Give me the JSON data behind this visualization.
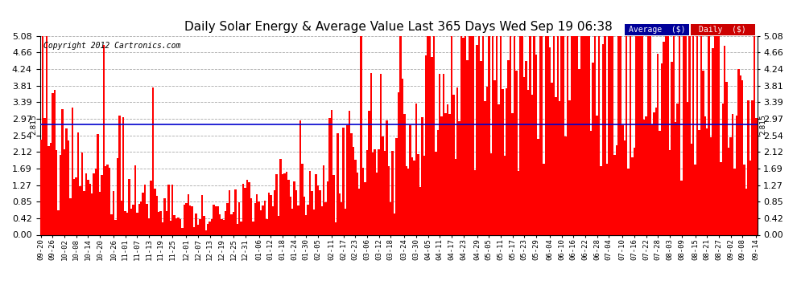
{
  "title": "Daily Solar Energy & Average Value Last 365 Days Wed Sep 19 06:38",
  "copyright": "Copyright 2012 Cartronics.com",
  "bar_color": "#ff0000",
  "avg_line_color": "#0000cd",
  "avg_value": 2.815,
  "avg_label": "2.815",
  "ylim_min": 0.0,
  "ylim_max": 5.08,
  "yticks": [
    0.0,
    0.42,
    0.85,
    1.27,
    1.69,
    2.12,
    2.54,
    2.97,
    3.39,
    3.81,
    4.24,
    4.66,
    5.08
  ],
  "background_color": "#ffffff",
  "grid_color": "#aaaaaa",
  "legend_avg_color": "#000099",
  "legend_daily_color": "#cc0000",
  "legend_avg_text": "Average  ($)",
  "legend_daily_text": "Daily  ($)",
  "x_labels": [
    "09-20",
    "09-26",
    "10-02",
    "10-08",
    "10-14",
    "10-20",
    "10-26",
    "11-01",
    "11-07",
    "11-13",
    "11-19",
    "11-25",
    "12-01",
    "12-07",
    "12-13",
    "12-19",
    "12-25",
    "12-31",
    "01-06",
    "01-12",
    "01-18",
    "01-24",
    "01-30",
    "02-05",
    "02-11",
    "02-17",
    "02-23",
    "03-06",
    "03-12",
    "03-18",
    "03-24",
    "03-30",
    "04-05",
    "04-11",
    "04-17",
    "04-23",
    "04-29",
    "05-05",
    "05-11",
    "05-17",
    "05-23",
    "05-29",
    "06-04",
    "06-10",
    "06-16",
    "06-22",
    "06-28",
    "07-04",
    "07-10",
    "07-16",
    "07-22",
    "07-28",
    "08-03",
    "08-09",
    "08-15",
    "08-21",
    "08-27",
    "09-02",
    "09-08",
    "09-14"
  ],
  "num_bars": 365,
  "title_fontsize": 11,
  "tick_fontsize": 8,
  "xlabel_fontsize": 6.5
}
